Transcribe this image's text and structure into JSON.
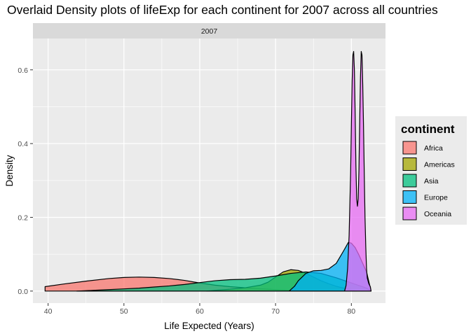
{
  "chart_data": {
    "type": "area",
    "title": "Overlaid Density plots of lifeExp for each continent for 2007 across all countries",
    "facet_label": "2007",
    "xlabel": "Life Expected (Years)",
    "ylabel": "Density",
    "xlim": [
      38.0,
      84.5
    ],
    "ylim": [
      -0.0326,
      0.685
    ],
    "x_ticks": [
      40,
      50,
      60,
      70,
      80
    ],
    "y_ticks": [
      0.0,
      0.2,
      0.4,
      0.6
    ],
    "x_tick_labels": [
      "40",
      "50",
      "60",
      "70",
      "80"
    ],
    "y_tick_labels": [
      "0.0",
      "0.2",
      "0.4",
      "0.6"
    ],
    "grid": true,
    "legend": {
      "title": "continent",
      "position": "right"
    },
    "fill_alpha": 0.75,
    "series": [
      {
        "name": "Africa",
        "color": "#F8766D",
        "x": [
          39.6,
          42,
          45,
          48,
          50,
          52,
          54,
          56,
          58,
          60,
          62,
          64,
          66,
          68,
          70,
          72,
          74,
          76.4
        ],
        "y": [
          0.012,
          0.019,
          0.027,
          0.034,
          0.037,
          0.038,
          0.037,
          0.034,
          0.029,
          0.022,
          0.016,
          0.012,
          0.009,
          0.006,
          0.004,
          0.002,
          0.001,
          0.0
        ]
      },
      {
        "name": "Americas",
        "color": "#A3A500",
        "x": [
          60.9,
          62,
          64,
          66,
          68,
          69,
          70,
          71,
          72,
          73,
          74,
          75,
          76,
          77,
          78,
          79,
          80,
          80.65
        ],
        "y": [
          0.0,
          0.002,
          0.005,
          0.009,
          0.016,
          0.024,
          0.038,
          0.052,
          0.058,
          0.056,
          0.048,
          0.038,
          0.028,
          0.02,
          0.013,
          0.008,
          0.003,
          0.0
        ]
      },
      {
        "name": "Asia",
        "color": "#00BF7D",
        "x": [
          43.8,
          46,
          48,
          50,
          52,
          54,
          56,
          58,
          60,
          62,
          64,
          66,
          68,
          70,
          72,
          74,
          76,
          78,
          80,
          82,
          82.6
        ],
        "y": [
          0.0,
          0.002,
          0.004,
          0.006,
          0.008,
          0.011,
          0.014,
          0.018,
          0.023,
          0.028,
          0.031,
          0.032,
          0.035,
          0.041,
          0.048,
          0.052,
          0.048,
          0.036,
          0.022,
          0.008,
          0.0
        ]
      },
      {
        "name": "Europe",
        "color": "#00B0F6",
        "x": [
          71.8,
          72.5,
          73,
          74,
          75,
          76,
          77,
          78,
          79,
          79.6,
          80,
          80.5,
          81,
          81.5,
          82,
          82.6
        ],
        "y": [
          0.0,
          0.013,
          0.028,
          0.048,
          0.055,
          0.056,
          0.06,
          0.075,
          0.11,
          0.132,
          0.13,
          0.118,
          0.098,
          0.075,
          0.052,
          0.0
        ]
      },
      {
        "name": "Oceania",
        "color": "#E76BF3",
        "x": [
          79.1,
          79.3,
          79.5,
          79.7,
          79.9,
          80.0,
          80.1,
          80.2,
          80.3,
          80.4,
          80.5,
          80.6,
          80.7,
          80.8,
          80.9,
          81.0,
          81.1,
          81.2,
          81.3,
          81.4,
          81.5,
          81.6,
          81.7,
          81.8,
          81.9,
          82.0,
          82.1,
          82.3,
          82.5,
          82.6
        ],
        "y": [
          0.0,
          0.015,
          0.06,
          0.15,
          0.32,
          0.45,
          0.57,
          0.64,
          0.65,
          0.6,
          0.48,
          0.34,
          0.25,
          0.23,
          0.25,
          0.33,
          0.46,
          0.58,
          0.65,
          0.64,
          0.56,
          0.45,
          0.32,
          0.2,
          0.12,
          0.06,
          0.035,
          0.02,
          0.012,
          0.0
        ]
      }
    ]
  }
}
